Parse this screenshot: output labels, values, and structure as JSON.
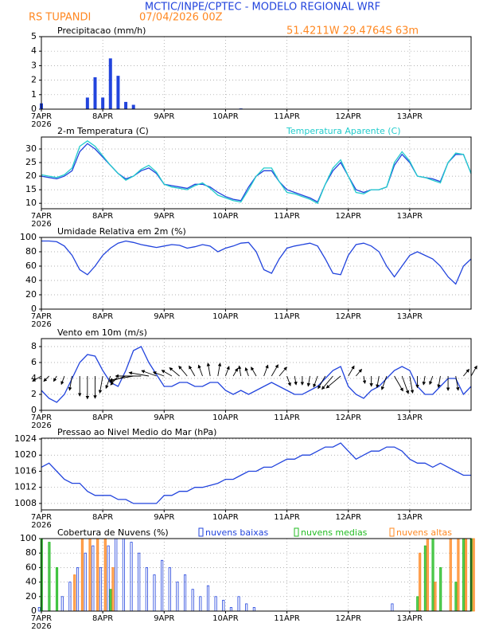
{
  "header": {
    "title": "MCTIC/INPE/CPTEC - MODELO REGIONAL WRF",
    "location": "RS TUPANDI",
    "run": "07/04/2026 00Z",
    "coords": "51.4211W 29.4764S 63m"
  },
  "chart_data": [
    {
      "type": "bar",
      "title": "Precipitacao (mm/h)",
      "year": "2026",
      "xlim": [
        0,
        56
      ],
      "xticks": [
        {
          "value": 0,
          "label": "7APR"
        },
        {
          "value": 8,
          "label": "8APR"
        },
        {
          "value": 16,
          "label": "9APR"
        },
        {
          "value": 24,
          "label": "10APR"
        },
        {
          "value": 32,
          "label": "11APR"
        },
        {
          "value": 40,
          "label": "12APR"
        },
        {
          "value": 48,
          "label": "13APR"
        }
      ],
      "ylim": [
        0,
        5
      ],
      "yticks": [
        0,
        1,
        2,
        3,
        4,
        5
      ],
      "grid": true,
      "color": "#2244dd",
      "values": [
        0.4,
        0,
        0,
        0,
        0,
        0,
        0.8,
        2.2,
        0.8,
        3.5,
        2.3,
        0.5,
        0.3,
        0,
        0,
        0,
        0,
        0,
        0,
        0,
        0,
        0,
        0,
        0,
        0,
        0,
        0.05,
        0,
        0,
        0,
        0,
        0,
        0,
        0,
        0,
        0,
        0,
        0,
        0,
        0,
        0,
        0,
        0,
        0,
        0,
        0,
        0,
        0,
        0,
        0,
        0,
        0,
        0,
        0,
        0,
        0,
        0
      ]
    },
    {
      "type": "line",
      "title": "2-m Temperatura (C)",
      "year": "2026",
      "xlim": [
        0,
        56
      ],
      "xticks": [
        {
          "value": 0,
          "label": "7APR"
        },
        {
          "value": 8,
          "label": "8APR"
        },
        {
          "value": 16,
          "label": "9APR"
        },
        {
          "value": 24,
          "label": "10APR"
        },
        {
          "value": 32,
          "label": "11APR"
        },
        {
          "value": 40,
          "label": "12APR"
        },
        {
          "value": 48,
          "label": "13APR"
        }
      ],
      "ylim": [
        8,
        34.4
      ],
      "yticks": [
        10,
        15,
        20,
        25,
        30
      ],
      "grid": true,
      "series": [
        {
          "color": "#2244dd",
          "values": [
            20,
            19.5,
            19,
            20,
            22,
            29,
            32,
            30,
            27,
            24,
            21,
            19,
            20,
            22,
            23,
            21,
            17,
            16.5,
            16,
            15.5,
            17,
            17,
            16,
            14,
            12.5,
            11.5,
            11,
            16,
            20,
            22,
            22,
            18,
            15,
            14,
            13,
            12,
            10.5,
            17,
            22,
            25,
            20,
            15,
            14,
            15,
            15,
            16,
            24,
            28,
            25,
            20,
            19.5,
            19,
            18,
            25,
            28,
            28,
            21
          ]
        },
        {
          "name": "Temperatura Aparente (C)",
          "color": "#22cccc",
          "values": [
            20.5,
            20,
            19.5,
            20.5,
            23,
            31,
            33,
            31,
            27.5,
            24,
            21,
            18.5,
            20,
            22.5,
            24,
            21.5,
            17,
            16,
            15.5,
            15,
            16.5,
            17.5,
            15.5,
            13,
            12,
            11,
            10.5,
            15,
            20,
            23,
            23,
            18,
            14,
            13.5,
            12.5,
            11.5,
            10,
            17,
            23,
            26,
            20,
            14,
            13.5,
            15,
            15,
            16,
            25,
            29,
            25.5,
            20,
            19.5,
            18.5,
            17.5,
            25,
            28.5,
            28,
            21
          ]
        }
      ]
    },
    {
      "type": "line",
      "title": "Umidade Relativa em 2m (%)",
      "year": "2026",
      "xlim": [
        0,
        56
      ],
      "xticks": [
        {
          "value": 0,
          "label": "7APR"
        },
        {
          "value": 8,
          "label": "8APR"
        },
        {
          "value": 16,
          "label": "9APR"
        },
        {
          "value": 24,
          "label": "10APR"
        },
        {
          "value": 32,
          "label": "11APR"
        },
        {
          "value": 40,
          "label": "12APR"
        },
        {
          "value": 48,
          "label": "13APR"
        }
      ],
      "ylim": [
        0,
        100
      ],
      "yticks": [
        0,
        20,
        40,
        60,
        80,
        100
      ],
      "grid": true,
      "series": [
        {
          "color": "#2244dd",
          "values": [
            95,
            95,
            94,
            88,
            75,
            55,
            48,
            60,
            75,
            85,
            92,
            95,
            93,
            90,
            88,
            86,
            88,
            90,
            89,
            85,
            87,
            90,
            88,
            80,
            85,
            88,
            92,
            93,
            80,
            55,
            50,
            70,
            85,
            88,
            90,
            92,
            88,
            70,
            50,
            48,
            75,
            90,
            92,
            88,
            80,
            60,
            45,
            60,
            75,
            80,
            75,
            70,
            60,
            45,
            35,
            60,
            70
          ]
        }
      ]
    },
    {
      "type": "line",
      "title": "Vento em 10m (m/s)",
      "year": "2026",
      "xlim": [
        0,
        56
      ],
      "xticks": [
        {
          "value": 0,
          "label": "7APR"
        },
        {
          "value": 8,
          "label": "8APR"
        },
        {
          "value": 16,
          "label": "9APR"
        },
        {
          "value": 24,
          "label": "10APR"
        },
        {
          "value": 32,
          "label": "11APR"
        },
        {
          "value": 40,
          "label": "12APR"
        },
        {
          "value": 48,
          "label": "13APR"
        }
      ],
      "ylim": [
        0,
        9
      ],
      "yticks": [
        0,
        2,
        4,
        6,
        8
      ],
      "grid": true,
      "series": [
        {
          "color": "#2244dd",
          "values": [
            2.5,
            1.5,
            1,
            2,
            4,
            6,
            7,
            6.8,
            5,
            3.5,
            3,
            5,
            7.5,
            8,
            6,
            4.5,
            3,
            3,
            3.5,
            3.5,
            3,
            3,
            3.5,
            3.5,
            2.5,
            2,
            2.5,
            2,
            2.5,
            3,
            3.5,
            3,
            2.5,
            2,
            2,
            2.5,
            3,
            4,
            5,
            5.5,
            3,
            2,
            1.5,
            2.5,
            3,
            4,
            5,
            5.5,
            5,
            3,
            2,
            2,
            3,
            4,
            4,
            2,
            3
          ]
        }
      ],
      "wind_direction": [
        240,
        225,
        210,
        200,
        190,
        180,
        180,
        180,
        190,
        200,
        220,
        250,
        260,
        270,
        280,
        290,
        290,
        300,
        310,
        320,
        330,
        340,
        350,
        10,
        20,
        30,
        350,
        340,
        330,
        20,
        30,
        40,
        160,
        170,
        180,
        190,
        200,
        210,
        220,
        230,
        30,
        40,
        170,
        180,
        190,
        200,
        150,
        160,
        170,
        180,
        190,
        200,
        190,
        180,
        170,
        40,
        30
      ]
    },
    {
      "type": "line",
      "title": "Pressao ao Nivel Medio do Mar (hPa)",
      "year": "2026",
      "xlim": [
        0,
        56
      ],
      "xticks": [
        {
          "value": 0,
          "label": "7APR"
        },
        {
          "value": 8,
          "label": "8APR"
        },
        {
          "value": 16,
          "label": "9APR"
        },
        {
          "value": 24,
          "label": "10APR"
        },
        {
          "value": 32,
          "label": "11APR"
        },
        {
          "value": 40,
          "label": "12APR"
        },
        {
          "value": 48,
          "label": "13APR"
        }
      ],
      "ylim": [
        1006.4,
        1024.2
      ],
      "yticks": [
        1008,
        1012,
        1016,
        1020,
        1024
      ],
      "grid": true,
      "series": [
        {
          "color": "#2244dd",
          "values": [
            1017,
            1018,
            1016,
            1014,
            1013,
            1013,
            1011,
            1010,
            1010,
            1010,
            1009,
            1009,
            1008,
            1008,
            1008,
            1008,
            1010,
            1010,
            1011,
            1011,
            1012,
            1012,
            1012.5,
            1013,
            1014,
            1014,
            1015,
            1016,
            1016,
            1017,
            1017,
            1018,
            1019,
            1019,
            1020,
            1020,
            1021,
            1022,
            1022,
            1023,
            1021,
            1019,
            1020,
            1021,
            1021,
            1022,
            1022,
            1021,
            1019,
            1018,
            1018,
            1017,
            1018,
            1017,
            1016,
            1015,
            1015
          ]
        }
      ]
    },
    {
      "type": "grouped-bar",
      "title": "Cobertura de Nuvens (%)",
      "year": "2026",
      "xlim": [
        0,
        56
      ],
      "xticks": [
        {
          "value": 0,
          "label": "7APR"
        },
        {
          "value": 8,
          "label": "8APR"
        },
        {
          "value": 16,
          "label": "9APR"
        },
        {
          "value": 24,
          "label": "10APR"
        },
        {
          "value": 32,
          "label": "11APR"
        },
        {
          "value": 40,
          "label": "12APR"
        },
        {
          "value": 48,
          "label": "13APR"
        }
      ],
      "ylim": [
        0,
        100
      ],
      "yticks": [
        0,
        20,
        40,
        60,
        80,
        100
      ],
      "grid": true,
      "series": [
        {
          "name": "nuvens baixas",
          "color": "#2244dd",
          "filled": false,
          "values": [
            5,
            0,
            0,
            20,
            40,
            60,
            80,
            90,
            60,
            90,
            100,
            100,
            95,
            80,
            60,
            50,
            70,
            60,
            40,
            50,
            30,
            20,
            35,
            20,
            15,
            5,
            20,
            10,
            5,
            0,
            0,
            0,
            0,
            0,
            0,
            0,
            0,
            0,
            0,
            0,
            0,
            0,
            0,
            0,
            0,
            0,
            10,
            0,
            0,
            0,
            0,
            0,
            0,
            0,
            0,
            0,
            0
          ]
        },
        {
          "name": "nuvens medias",
          "color": "#22bb22",
          "filled": true,
          "values": [
            100,
            95,
            60,
            0,
            0,
            0,
            0,
            0,
            0,
            30,
            0,
            0,
            0,
            0,
            0,
            0,
            0,
            0,
            0,
            0,
            0,
            0,
            0,
            0,
            0,
            0,
            0,
            0,
            0,
            0,
            0,
            0,
            0,
            0,
            0,
            0,
            0,
            0,
            0,
            0,
            0,
            0,
            0,
            0,
            0,
            0,
            0,
            0,
            0,
            20,
            90,
            100,
            60,
            0,
            40,
            100,
            100
          ]
        },
        {
          "name": "nuvens altas",
          "color": "#ff8822",
          "filled": true,
          "values": [
            0,
            0,
            0,
            0,
            50,
            100,
            100,
            100,
            100,
            60,
            0,
            0,
            0,
            0,
            0,
            0,
            0,
            0,
            0,
            0,
            0,
            0,
            0,
            0,
            0,
            0,
            0,
            0,
            0,
            0,
            0,
            0,
            0,
            0,
            0,
            0,
            0,
            0,
            0,
            0,
            0,
            0,
            0,
            0,
            0,
            0,
            0,
            0,
            0,
            80,
            100,
            40,
            0,
            100,
            100,
            100,
            100
          ]
        }
      ]
    }
  ]
}
